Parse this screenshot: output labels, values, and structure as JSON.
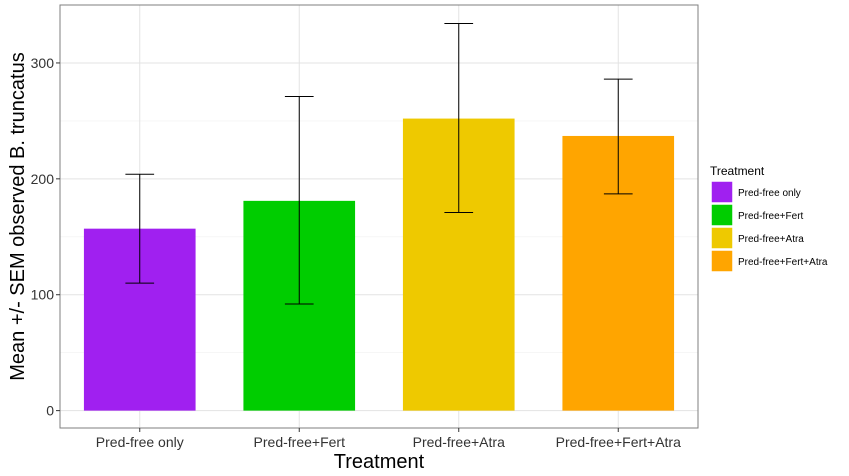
{
  "chart_data": {
    "type": "bar",
    "categories": [
      "Pred-free only",
      "Pred-free+Fert",
      "Pred-free+Atra",
      "Pred-free+Fert+Atra"
    ],
    "values": [
      157,
      181,
      252,
      237
    ],
    "error_low": [
      110,
      92,
      171,
      187
    ],
    "error_high": [
      204,
      271,
      334,
      286
    ],
    "colors": [
      "#A020F0",
      "#00CD00",
      "#EEC900",
      "#FFA500"
    ],
    "xlabel": "Treatment",
    "ylabel": "Mean +/- SEM observed B. truncatus",
    "ylim": [
      -15,
      350
    ],
    "yticks": [
      0,
      100,
      200,
      300
    ],
    "grid": true,
    "legend": {
      "title": "Treatment",
      "position": "right",
      "entries": [
        "Pred-free only",
        "Pred-free+Fert",
        "Pred-free+Atra",
        "Pred-free+Fert+Atra"
      ]
    }
  }
}
